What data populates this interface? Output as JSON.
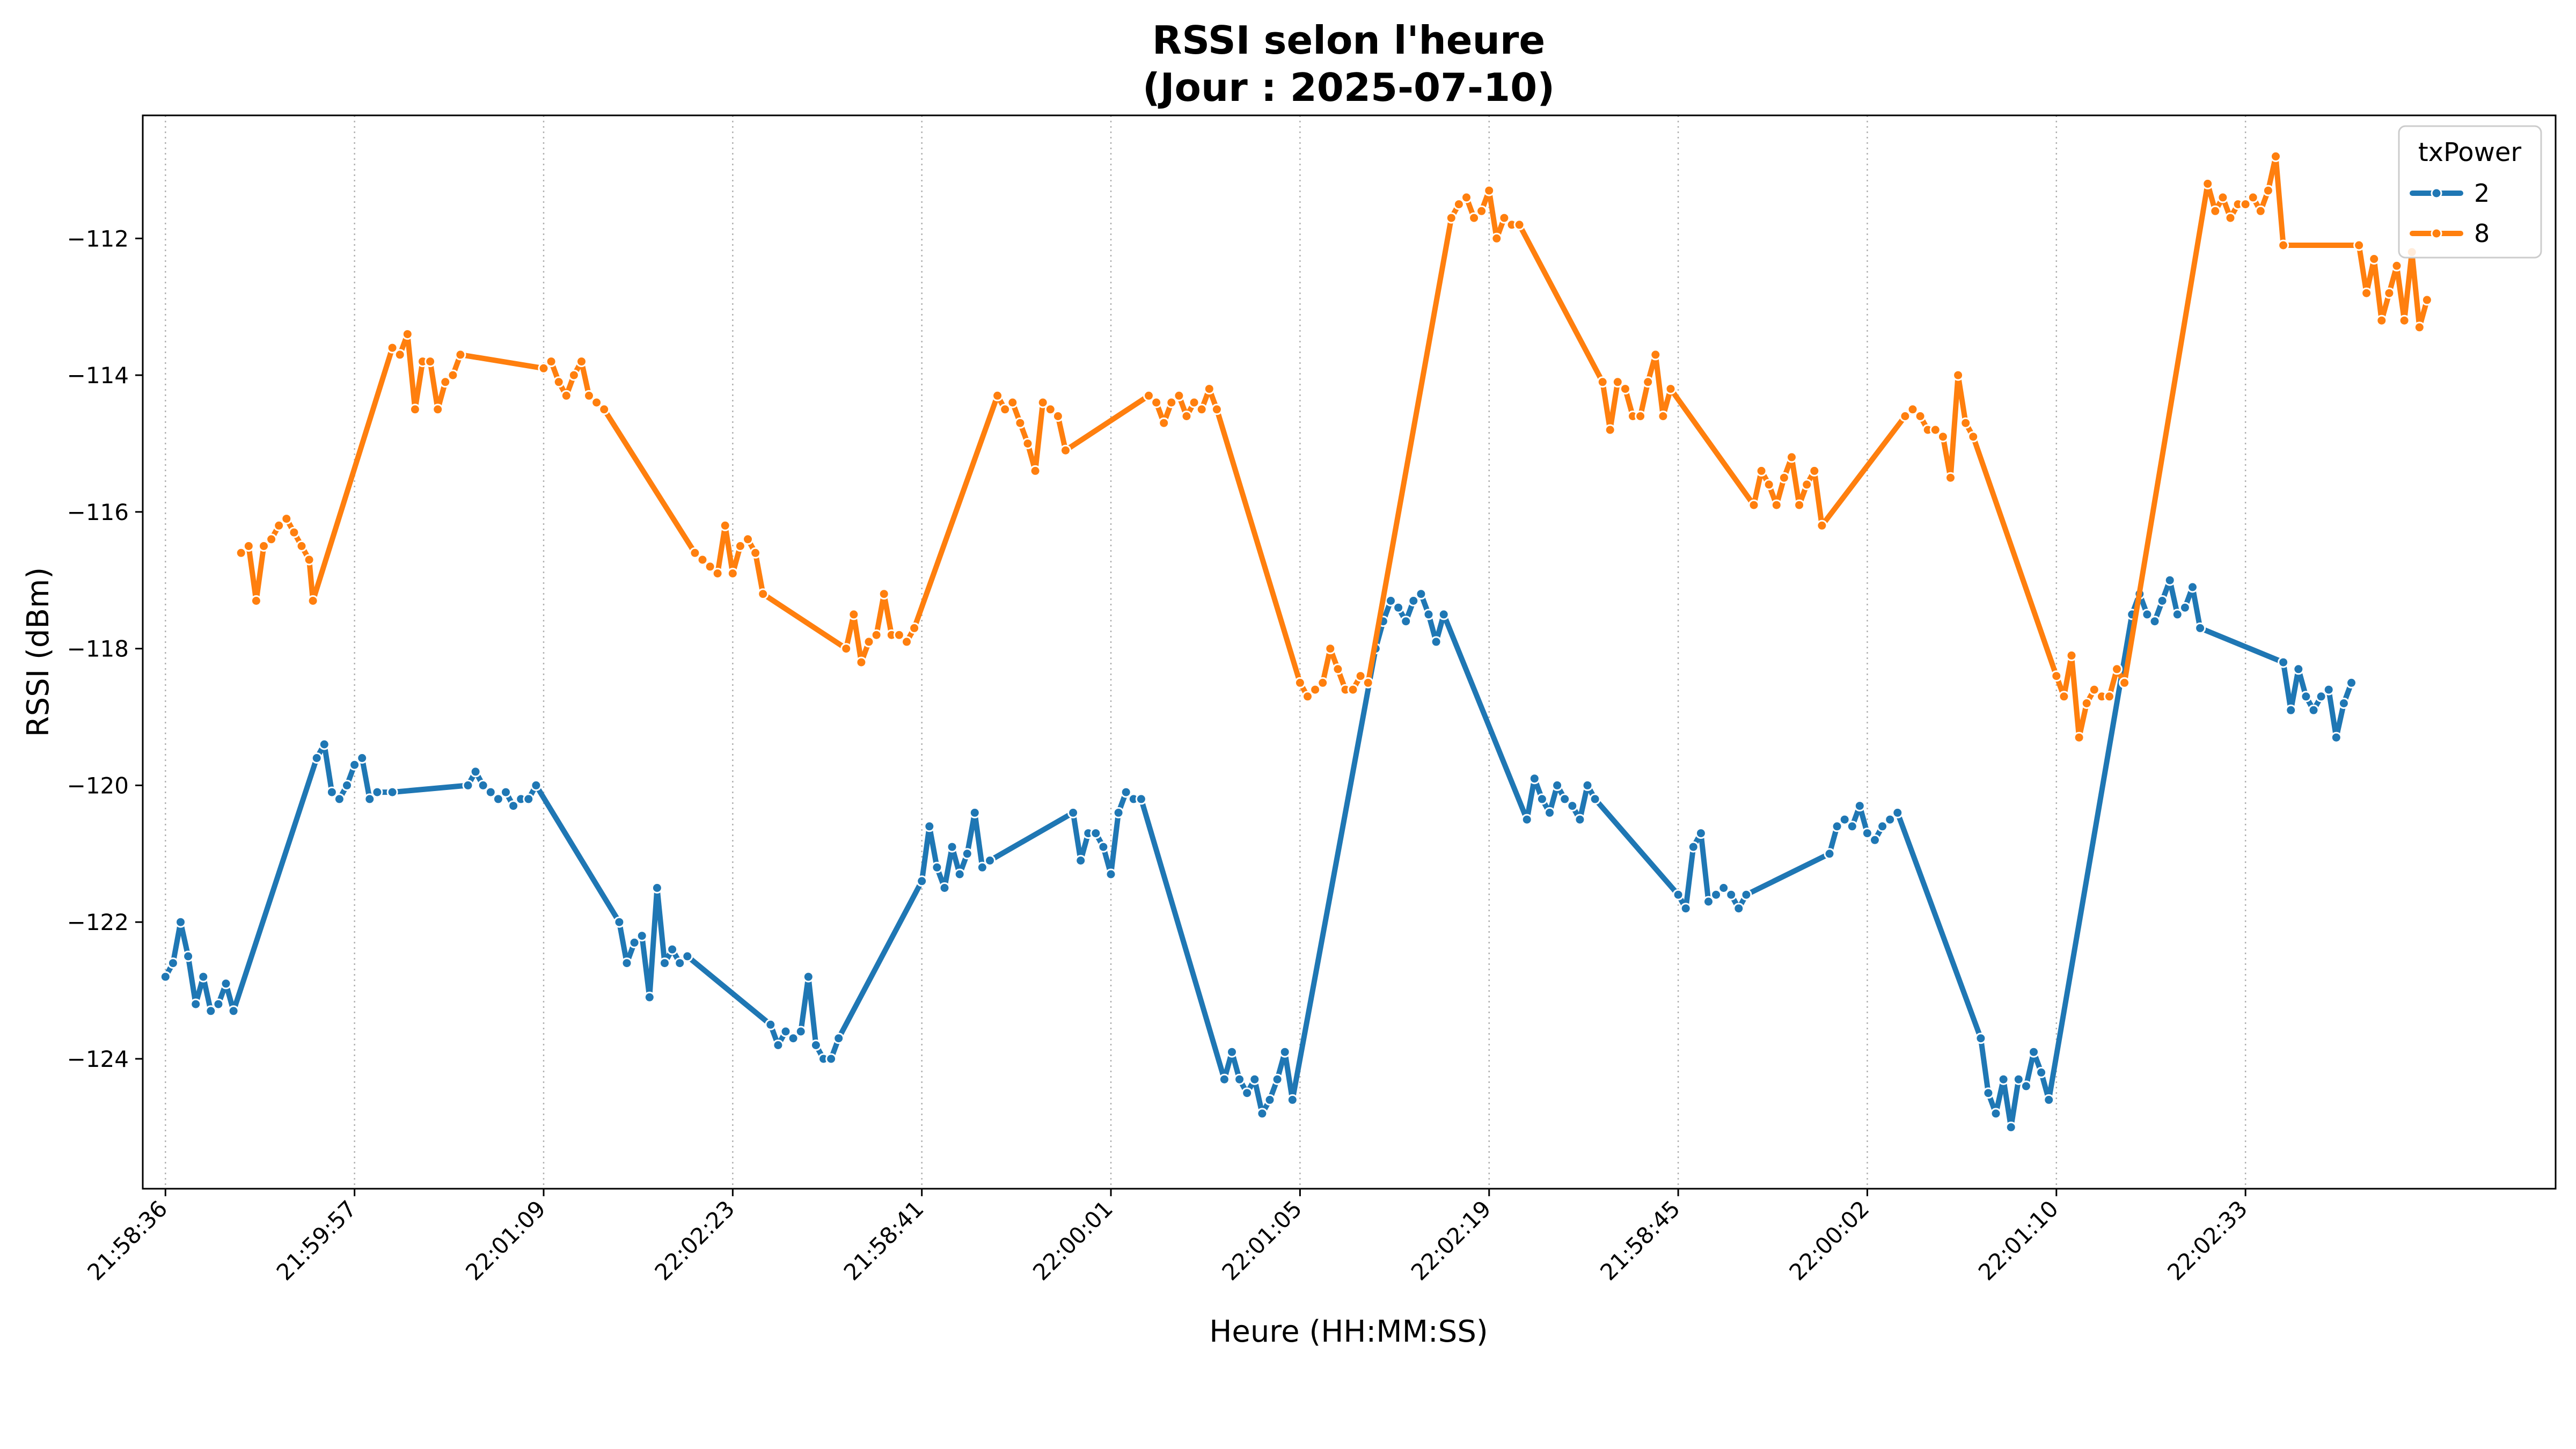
{
  "chart_data": {
    "type": "line",
    "title_line1": "RSSI selon l'heure",
    "title_line2": "(Jour : 2025-07-10)",
    "xlabel": "Heure (HH:MM:SS)",
    "ylabel": "RSSI (dBm)",
    "ylim": [
      -125.9,
      -110.2
    ],
    "xlim": [
      -3,
      316
    ],
    "grid": "x-only, dotted",
    "legend": {
      "title": "txPower",
      "placement": "top-right"
    },
    "x_ticks": [
      {
        "x": 0,
        "label": "21:58:36"
      },
      {
        "x": 25,
        "label": "21:59:57"
      },
      {
        "x": 50,
        "label": "22:01:09"
      },
      {
        "x": 75,
        "label": "22:02:23"
      },
      {
        "x": 100,
        "label": "21:58:41"
      },
      {
        "x": 125,
        "label": "22:00:01"
      },
      {
        "x": 150,
        "label": "22:01:05"
      },
      {
        "x": 175,
        "label": "22:02:19"
      },
      {
        "x": 200,
        "label": "21:58:45"
      },
      {
        "x": 225,
        "label": "22:00:02"
      },
      {
        "x": 250,
        "label": "22:01:10"
      },
      {
        "x": 275,
        "label": "22:02:33"
      }
    ],
    "y_ticks": [
      -112,
      -114,
      -116,
      -118,
      -120,
      -122,
      -124
    ],
    "series": [
      {
        "name": "2",
        "color": "#1f77b4",
        "points": [
          [
            0,
            -122.8
          ],
          [
            1,
            -122.6
          ],
          [
            2,
            -122
          ],
          [
            3,
            -122.5
          ],
          [
            4,
            -123.2
          ],
          [
            5,
            -122.8
          ],
          [
            6,
            -123.3
          ],
          [
            7,
            -123.2
          ],
          [
            8,
            -122.9
          ],
          [
            9,
            -123.3
          ],
          [
            20,
            -119.6
          ],
          [
            21,
            -119.4
          ],
          [
            22,
            -120.1
          ],
          [
            23,
            -120.2
          ],
          [
            24,
            -120
          ],
          [
            25,
            -119.7
          ],
          [
            26,
            -119.6
          ],
          [
            27,
            -120.2
          ],
          [
            28,
            -120.1
          ],
          [
            30,
            -120.1
          ],
          [
            40,
            -120
          ],
          [
            41,
            -119.8
          ],
          [
            42,
            -120
          ],
          [
            43,
            -120.1
          ],
          [
            44,
            -120.2
          ],
          [
            45,
            -120.1
          ],
          [
            46,
            -120.3
          ],
          [
            47,
            -120.2
          ],
          [
            48,
            -120.2
          ],
          [
            49,
            -120
          ],
          [
            60,
            -122
          ],
          [
            61,
            -122.6
          ],
          [
            62,
            -122.3
          ],
          [
            63,
            -122.2
          ],
          [
            64,
            -123.1
          ],
          [
            65,
            -121.5
          ],
          [
            66,
            -122.6
          ],
          [
            67,
            -122.4
          ],
          [
            68,
            -122.6
          ],
          [
            69,
            -122.5
          ],
          [
            80,
            -123.5
          ],
          [
            81,
            -123.8
          ],
          [
            82,
            -123.6
          ],
          [
            83,
            -123.7
          ],
          [
            84,
            -123.6
          ],
          [
            85,
            -122.8
          ],
          [
            86,
            -123.8
          ],
          [
            87,
            -124
          ],
          [
            88,
            -124
          ],
          [
            89,
            -123.7
          ],
          [
            100,
            -121.4
          ],
          [
            101,
            -120.6
          ],
          [
            102,
            -121.2
          ],
          [
            103,
            -121.5
          ],
          [
            104,
            -120.9
          ],
          [
            105,
            -121.3
          ],
          [
            106,
            -121
          ],
          [
            107,
            -120.4
          ],
          [
            108,
            -121.2
          ],
          [
            109,
            -121.1
          ],
          [
            120,
            -120.4
          ],
          [
            121,
            -121.1
          ],
          [
            122,
            -120.7
          ],
          [
            123,
            -120.7
          ],
          [
            124,
            -120.9
          ],
          [
            125,
            -121.3
          ],
          [
            126,
            -120.4
          ],
          [
            127,
            -120.1
          ],
          [
            128,
            -120.2
          ],
          [
            129,
            -120.2
          ],
          [
            140,
            -124.3
          ],
          [
            141,
            -123.9
          ],
          [
            142,
            -124.3
          ],
          [
            143,
            -124.5
          ],
          [
            144,
            -124.3
          ],
          [
            145,
            -124.8
          ],
          [
            146,
            -124.6
          ],
          [
            147,
            -124.3
          ],
          [
            148,
            -123.9
          ],
          [
            149,
            -124.6
          ],
          [
            160,
            -118
          ],
          [
            161,
            -117.6
          ],
          [
            162,
            -117.3
          ],
          [
            163,
            -117.4
          ],
          [
            164,
            -117.6
          ],
          [
            165,
            -117.3
          ],
          [
            166,
            -117.2
          ],
          [
            167,
            -117.5
          ],
          [
            168,
            -117.9
          ],
          [
            169,
            -117.5
          ],
          [
            180,
            -120.5
          ],
          [
            181,
            -119.9
          ],
          [
            182,
            -120.2
          ],
          [
            183,
            -120.4
          ],
          [
            184,
            -120
          ],
          [
            185,
            -120.2
          ],
          [
            186,
            -120.3
          ],
          [
            187,
            -120.5
          ],
          [
            188,
            -120
          ],
          [
            189,
            -120.2
          ],
          [
            200,
            -121.6
          ],
          [
            201,
            -121.8
          ],
          [
            202,
            -120.9
          ],
          [
            203,
            -120.7
          ],
          [
            204,
            -121.7
          ],
          [
            205,
            -121.6
          ],
          [
            206,
            -121.5
          ],
          [
            207,
            -121.6
          ],
          [
            208,
            -121.8
          ],
          [
            209,
            -121.6
          ],
          [
            220,
            -121
          ],
          [
            221,
            -120.6
          ],
          [
            222,
            -120.5
          ],
          [
            223,
            -120.6
          ],
          [
            224,
            -120.3
          ],
          [
            225,
            -120.7
          ],
          [
            226,
            -120.8
          ],
          [
            227,
            -120.6
          ],
          [
            228,
            -120.5
          ],
          [
            229,
            -120.4
          ],
          [
            240,
            -123.7
          ],
          [
            241,
            -124.5
          ],
          [
            242,
            -124.8
          ],
          [
            243,
            -124.3
          ],
          [
            244,
            -125
          ],
          [
            245,
            -124.3
          ],
          [
            246,
            -124.4
          ],
          [
            247,
            -123.9
          ],
          [
            248,
            -124.2
          ],
          [
            249,
            -124.6
          ],
          [
            260,
            -117.5
          ],
          [
            261,
            -117.2
          ],
          [
            262,
            -117.5
          ],
          [
            263,
            -117.6
          ],
          [
            264,
            -117.3
          ],
          [
            265,
            -117
          ],
          [
            266,
            -117.5
          ],
          [
            267,
            -117.4
          ],
          [
            268,
            -117.1
          ],
          [
            269,
            -117.7
          ],
          [
            280,
            -118.2
          ],
          [
            281,
            -118.9
          ],
          [
            282,
            -118.3
          ],
          [
            283,
            -118.7
          ],
          [
            284,
            -118.9
          ],
          [
            285,
            -118.7
          ],
          [
            286,
            -118.6
          ],
          [
            287,
            -119.3
          ],
          [
            288,
            -118.8
          ],
          [
            289,
            -118.5
          ]
        ]
      },
      {
        "name": "8",
        "color": "#ff7f0e",
        "points": [
          [
            10,
            -116.6
          ],
          [
            11,
            -116.5
          ],
          [
            12,
            -117.3
          ],
          [
            13,
            -116.5
          ],
          [
            14,
            -116.4
          ],
          [
            15,
            -116.2
          ],
          [
            16,
            -116.1
          ],
          [
            17,
            -116.3
          ],
          [
            18,
            -116.5
          ],
          [
            19,
            -116.7
          ],
          [
            19.5,
            -117.3
          ],
          [
            30,
            -113.6
          ],
          [
            31,
            -113.7
          ],
          [
            32,
            -113.4
          ],
          [
            33,
            -114.5
          ],
          [
            34,
            -113.8
          ],
          [
            35,
            -113.8
          ],
          [
            36,
            -114.5
          ],
          [
            37,
            -114.1
          ],
          [
            38,
            -114
          ],
          [
            39,
            -113.7
          ],
          [
            50,
            -113.9
          ],
          [
            51,
            -113.8
          ],
          [
            52,
            -114.1
          ],
          [
            53,
            -114.3
          ],
          [
            54,
            -114
          ],
          [
            55,
            -113.8
          ],
          [
            56,
            -114.3
          ],
          [
            57,
            -114.4
          ],
          [
            58,
            -114.5
          ],
          [
            70,
            -116.6
          ],
          [
            71,
            -116.7
          ],
          [
            72,
            -116.8
          ],
          [
            73,
            -116.9
          ],
          [
            74,
            -116.2
          ],
          [
            75,
            -116.9
          ],
          [
            76,
            -116.5
          ],
          [
            77,
            -116.4
          ],
          [
            78,
            -116.6
          ],
          [
            79,
            -117.2
          ],
          [
            90,
            -118
          ],
          [
            91,
            -117.5
          ],
          [
            92,
            -118.2
          ],
          [
            93,
            -117.9
          ],
          [
            94,
            -117.8
          ],
          [
            95,
            -117.2
          ],
          [
            96,
            -117.8
          ],
          [
            97,
            -117.8
          ],
          [
            98,
            -117.9
          ],
          [
            99,
            -117.7
          ],
          [
            110,
            -114.3
          ],
          [
            111,
            -114.5
          ],
          [
            112,
            -114.4
          ],
          [
            113,
            -114.7
          ],
          [
            114,
            -115
          ],
          [
            115,
            -115.4
          ],
          [
            116,
            -114.4
          ],
          [
            117,
            -114.5
          ],
          [
            118,
            -114.6
          ],
          [
            119,
            -115.1
          ],
          [
            130,
            -114.3
          ],
          [
            131,
            -114.4
          ],
          [
            132,
            -114.7
          ],
          [
            133,
            -114.4
          ],
          [
            134,
            -114.3
          ],
          [
            135,
            -114.6
          ],
          [
            136,
            -114.4
          ],
          [
            137,
            -114.5
          ],
          [
            138,
            -114.2
          ],
          [
            139,
            -114.5
          ],
          [
            150,
            -118.5
          ],
          [
            151,
            -118.7
          ],
          [
            152,
            -118.6
          ],
          [
            153,
            -118.5
          ],
          [
            154,
            -118
          ],
          [
            155,
            -118.3
          ],
          [
            156,
            -118.6
          ],
          [
            157,
            -118.6
          ],
          [
            158,
            -118.4
          ],
          [
            159,
            -118.5
          ],
          [
            170,
            -111.7
          ],
          [
            171,
            -111.5
          ],
          [
            172,
            -111.4
          ],
          [
            173,
            -111.7
          ],
          [
            174,
            -111.6
          ],
          [
            175,
            -111.3
          ],
          [
            176,
            -112
          ],
          [
            177,
            -111.7
          ],
          [
            178,
            -111.8
          ],
          [
            179,
            -111.8
          ],
          [
            190,
            -114.1
          ],
          [
            191,
            -114.8
          ],
          [
            192,
            -114.1
          ],
          [
            193,
            -114.2
          ],
          [
            194,
            -114.6
          ],
          [
            195,
            -114.6
          ],
          [
            196,
            -114.1
          ],
          [
            197,
            -113.7
          ],
          [
            198,
            -114.6
          ],
          [
            199,
            -114.2
          ],
          [
            210,
            -115.9
          ],
          [
            211,
            -115.4
          ],
          [
            212,
            -115.6
          ],
          [
            213,
            -115.9
          ],
          [
            214,
            -115.5
          ],
          [
            215,
            -115.2
          ],
          [
            216,
            -115.9
          ],
          [
            217,
            -115.6
          ],
          [
            218,
            -115.4
          ],
          [
            219,
            -116.2
          ],
          [
            230,
            -114.6
          ],
          [
            231,
            -114.5
          ],
          [
            232,
            -114.6
          ],
          [
            233,
            -114.8
          ],
          [
            234,
            -114.8
          ],
          [
            235,
            -114.9
          ],
          [
            236,
            -115.5
          ],
          [
            237,
            -114
          ],
          [
            238,
            -114.7
          ],
          [
            239,
            -114.9
          ],
          [
            250,
            -118.4
          ],
          [
            251,
            -118.7
          ],
          [
            252,
            -118.1
          ],
          [
            253,
            -119.3
          ],
          [
            254,
            -118.8
          ],
          [
            255,
            -118.6
          ],
          [
            256,
            -118.7
          ],
          [
            257,
            -118.7
          ],
          [
            258,
            -118.3
          ],
          [
            259,
            -118.5
          ],
          [
            270,
            -111.2
          ],
          [
            271,
            -111.6
          ],
          [
            272,
            -111.4
          ],
          [
            273,
            -111.7
          ],
          [
            274,
            -111.5
          ],
          [
            275,
            -111.5
          ],
          [
            276,
            -111.4
          ],
          [
            277,
            -111.6
          ],
          [
            278,
            -111.3
          ],
          [
            279,
            -110.8
          ],
          [
            280,
            -112.1
          ],
          [
            290,
            -112.1
          ],
          [
            291,
            -112.8
          ],
          [
            292,
            -112.3
          ],
          [
            293,
            -113.2
          ],
          [
            294,
            -112.8
          ],
          [
            295,
            -112.4
          ],
          [
            296,
            -113.2
          ],
          [
            297,
            -112.2
          ],
          [
            298,
            -113.3
          ],
          [
            299,
            -112.9
          ]
        ]
      }
    ]
  }
}
